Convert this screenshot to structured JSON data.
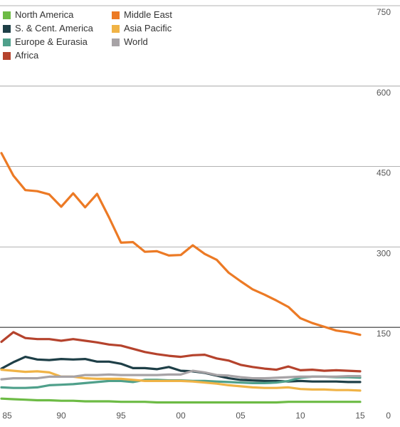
{
  "chart_data": {
    "type": "line",
    "title": "",
    "xlabel": "",
    "ylabel": "",
    "x": [
      1985,
      1986,
      1987,
      1988,
      1989,
      1990,
      1991,
      1992,
      1993,
      1994,
      1995,
      1996,
      1997,
      1998,
      1999,
      2000,
      2001,
      2002,
      2003,
      2004,
      2005,
      2006,
      2007,
      2008,
      2009,
      2010,
      2011,
      2012,
      2013,
      2014,
      2015
    ],
    "x_tick_values": [
      1985,
      1990,
      1995,
      2000,
      2005,
      2010,
      2015
    ],
    "x_tick_labels": [
      "85",
      "90",
      "95",
      "00",
      "05",
      "10",
      "15"
    ],
    "ylim": [
      0,
      750
    ],
    "y_ticks": [
      0,
      150,
      300,
      450,
      600,
      750
    ],
    "y_tick_labels": [
      "0",
      "150",
      "300",
      "450",
      "600",
      "750"
    ],
    "grid": "horizontal",
    "legend_placement": "top-left",
    "series": [
      {
        "name": "North America",
        "color": "#6dbb45",
        "values": [
          17,
          16,
          15,
          14,
          14,
          13,
          13,
          12,
          12,
          12,
          11,
          11,
          11,
          10,
          10,
          10,
          10,
          10,
          10,
          10,
          10,
          10,
          10,
          10,
          11,
          11,
          11,
          11,
          11,
          11,
          11
        ]
      },
      {
        "name": "S. & Cent. America",
        "color": "#1e3f47",
        "values": [
          73,
          85,
          95,
          90,
          89,
          91,
          90,
          91,
          86,
          86,
          82,
          74,
          74,
          72,
          76,
          69,
          68,
          65,
          60,
          55,
          52,
          51,
          50,
          50,
          49,
          50,
          49,
          49,
          49,
          48,
          48
        ]
      },
      {
        "name": "Europe & Eurasia",
        "color": "#4fa08b",
        "values": [
          38,
          37,
          37,
          38,
          42,
          43,
          44,
          46,
          48,
          50,
          50,
          48,
          52,
          52,
          51,
          51,
          50,
          50,
          49,
          48,
          47,
          46,
          46,
          47,
          50,
          56,
          58,
          58,
          57,
          57,
          56
        ]
      },
      {
        "name": "Africa",
        "color": "#b5432d",
        "values": [
          123,
          141,
          130,
          128,
          128,
          125,
          128,
          125,
          122,
          118,
          116,
          110,
          104,
          100,
          97,
          95,
          98,
          99,
          92,
          88,
          80,
          76,
          73,
          71,
          77,
          70,
          71,
          69,
          70,
          69,
          68
        ]
      },
      {
        "name": "Middle East",
        "color": "#ec7a25",
        "values": [
          475,
          433,
          406,
          404,
          398,
          375,
          400,
          374,
          399,
          355,
          308,
          309,
          291,
          292,
          284,
          285,
          303,
          287,
          276,
          252,
          236,
          221,
          211,
          200,
          188,
          167,
          158,
          151,
          144,
          141,
          136
        ]
      },
      {
        "name": "Asia Pacific",
        "color": "#f0b346",
        "values": [
          71,
          69,
          67,
          68,
          66,
          58,
          58,
          55,
          54,
          54,
          54,
          52,
          50,
          50,
          50,
          50,
          49,
          47,
          45,
          42,
          40,
          38,
          37,
          37,
          38,
          35,
          34,
          34,
          33,
          33,
          32
        ]
      },
      {
        "name": "World",
        "color": "#a7a3a6",
        "values": [
          53,
          55,
          55,
          55,
          58,
          58,
          58,
          61,
          61,
          62,
          61,
          61,
          61,
          61,
          62,
          62,
          69,
          66,
          61,
          60,
          57,
          55,
          55,
          56,
          57,
          58,
          58,
          58,
          58,
          59,
          59
        ]
      }
    ]
  }
}
